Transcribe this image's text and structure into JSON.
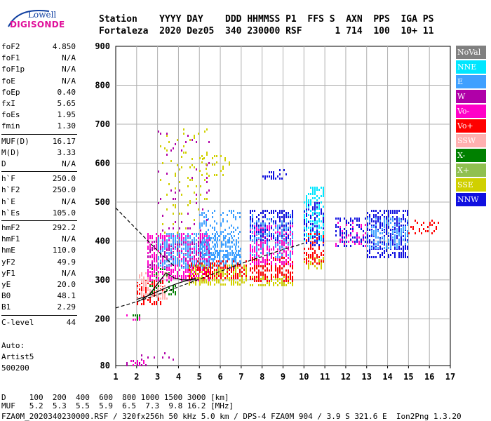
{
  "logo": {
    "brand": "Lowell",
    "product": "DIGISONDE"
  },
  "header": {
    "line1": "Station    YYYY DAY    DDD HHMMSS P1  FFS S  AXN  PPS  IGA PS",
    "line2": "Fortaleza  2020 Dez05  340 230000 RSF      1 714  100  10+ 11"
  },
  "params_group1": [
    {
      "label": "foF2",
      "value": "4.850"
    },
    {
      "label": "foF1",
      "value": "N/A"
    },
    {
      "label": "foF1p",
      "value": "N/A"
    },
    {
      "label": "foE",
      "value": "N/A"
    },
    {
      "label": "foEp",
      "value": "0.40"
    },
    {
      "label": "fxI",
      "value": "5.65"
    },
    {
      "label": "foEs",
      "value": "1.95"
    },
    {
      "label": "fmin",
      "value": "1.30"
    }
  ],
  "params_group2": [
    {
      "label": "MUF(D)",
      "value": "16.17"
    },
    {
      "label": "M(D)",
      "value": "3.33"
    },
    {
      "label": "D",
      "value": "N/A"
    }
  ],
  "params_group3": [
    {
      "label": "h`F",
      "value": "250.0"
    },
    {
      "label": "h`F2",
      "value": "250.0"
    },
    {
      "label": "h`E",
      "value": "N/A"
    },
    {
      "label": "h`Es",
      "value": "105.0"
    }
  ],
  "params_group4": [
    {
      "label": "hmF2",
      "value": "292.2"
    },
    {
      "label": "hmF1",
      "value": "N/A"
    },
    {
      "label": "hmE",
      "value": "110.0"
    },
    {
      "label": "yF2",
      "value": "49.9"
    },
    {
      "label": "yF1",
      "value": "N/A"
    },
    {
      "label": "yE",
      "value": "20.0"
    },
    {
      "label": "B0",
      "value": "48.1"
    },
    {
      "label": "B1",
      "value": "2.29"
    }
  ],
  "params_group5": [
    {
      "label": "C-level",
      "value": "44"
    }
  ],
  "autoscaling": {
    "line1": "Auto:",
    "line2": "Artist5",
    "line3": "500200"
  },
  "legend": [
    {
      "label": "NoVal",
      "color": "#808080"
    },
    {
      "label": "NNE",
      "color": "#00e6ff"
    },
    {
      "label": "E",
      "color": "#3fa0ff"
    },
    {
      "label": "W",
      "color": "#b000a8"
    },
    {
      "label": "Vo-",
      "color": "#ff00c8"
    },
    {
      "label": "Vo+",
      "color": "#ff0000"
    },
    {
      "label": "SSW",
      "color": "#ffb0b0"
    },
    {
      "label": "X-",
      "color": "#008000"
    },
    {
      "label": "X+",
      "color": "#90c050"
    },
    {
      "label": "SSE",
      "color": "#d0d000"
    },
    {
      "label": "NNW",
      "color": "#1010e0"
    }
  ],
  "footer": {
    "line1": "D     100  200  400  600  800 1000 1500 3000 [km]",
    "line2": "MUF   5.2  5.3  5.5  5.9  6.5  7.3  9.8 16.2 [MHz]",
    "line3": "FZA0M_2020340230000.RSF / 320fx256h 50 kHz 5.0 km / DPS-4 FZA0M 904 / 3.9 S 321.6 E  Ion2Png 1.3.20"
  },
  "chart_data": {
    "type": "scatter",
    "xlim": [
      1,
      17
    ],
    "ylim": [
      80,
      900
    ],
    "x_ticks": [
      1,
      2,
      3,
      4,
      5,
      6,
      7,
      8,
      9,
      10,
      11,
      12,
      13,
      14,
      15,
      16,
      17
    ],
    "y_ticks": [
      80,
      200,
      300,
      400,
      500,
      600,
      700,
      800,
      900
    ],
    "grid": true,
    "clusters": [
      {
        "x": [
          1.5,
          2.5
        ],
        "y": [
          80,
          95
        ],
        "color": "#ff00c8",
        "density": 0.4
      },
      {
        "x": [
          1.5,
          2.5
        ],
        "y": [
          80,
          95
        ],
        "color": "#b000a8",
        "density": 0.3
      },
      {
        "x": [
          2.2,
          3.8
        ],
        "y": [
          95,
          115
        ],
        "color": "#b000a8",
        "density": 0.15
      },
      {
        "x": [
          1.5,
          2.2
        ],
        "y": [
          200,
          212
        ],
        "color": "#ff00c8",
        "density": 0.4
      },
      {
        "x": [
          1.5,
          2.2
        ],
        "y": [
          200,
          212
        ],
        "color": "#008000",
        "density": 0.2
      },
      {
        "x": [
          2.0,
          3.3
        ],
        "y": [
          240,
          300
        ],
        "color": "#ff0000",
        "density": 0.5
      },
      {
        "x": [
          2.0,
          3.5
        ],
        "y": [
          250,
          320
        ],
        "color": "#ffb0b0",
        "density": 0.4
      },
      {
        "x": [
          2.6,
          4.0
        ],
        "y": [
          260,
          330
        ],
        "color": "#008000",
        "density": 0.25
      },
      {
        "x": [
          2.5,
          5.5
        ],
        "y": [
          300,
          420
        ],
        "color": "#ff00c8",
        "density": 0.5
      },
      {
        "x": [
          2.5,
          5.5
        ],
        "y": [
          330,
          400
        ],
        "color": "#b000a8",
        "density": 0.35
      },
      {
        "x": [
          3.0,
          7.0
        ],
        "y": [
          330,
          420
        ],
        "color": "#3fa0ff",
        "density": 0.5
      },
      {
        "x": [
          4.5,
          7.3
        ],
        "y": [
          290,
          340
        ],
        "color": "#d0d000",
        "density": 0.6
      },
      {
        "x": [
          4.5,
          7.3
        ],
        "y": [
          305,
          350
        ],
        "color": "#ff0000",
        "density": 0.45
      },
      {
        "x": [
          5.0,
          7.0
        ],
        "y": [
          350,
          480
        ],
        "color": "#3fa0ff",
        "density": 0.25
      },
      {
        "x": [
          3.0,
          5.5
        ],
        "y": [
          420,
          690
        ],
        "color": "#d0d000",
        "density": 0.05
      },
      {
        "x": [
          3.0,
          5.5
        ],
        "y": [
          420,
          690
        ],
        "color": "#b000a8",
        "density": 0.03
      },
      {
        "x": [
          5.0,
          6.5
        ],
        "y": [
          570,
          620
        ],
        "color": "#d0d000",
        "density": 0.15
      },
      {
        "x": [
          7.4,
          9.5
        ],
        "y": [
          285,
          310
        ],
        "color": "#d0d000",
        "density": 0.6
      },
      {
        "x": [
          7.4,
          9.5
        ],
        "y": [
          300,
          360
        ],
        "color": "#ff0000",
        "density": 0.5
      },
      {
        "x": [
          7.4,
          9.5
        ],
        "y": [
          340,
          440
        ],
        "color": "#ff00c8",
        "density": 0.45
      },
      {
        "x": [
          7.4,
          9.5
        ],
        "y": [
          400,
          480
        ],
        "color": "#1010e0",
        "density": 0.45
      },
      {
        "x": [
          7.4,
          9.5
        ],
        "y": [
          360,
          470
        ],
        "color": "#3fa0ff",
        "density": 0.3
      },
      {
        "x": [
          8.0,
          9.2
        ],
        "y": [
          560,
          585
        ],
        "color": "#1010e0",
        "density": 0.35
      },
      {
        "x": [
          10.0,
          11.0
        ],
        "y": [
          330,
          360
        ],
        "color": "#d0d000",
        "density": 0.5
      },
      {
        "x": [
          10.0,
          11.0
        ],
        "y": [
          340,
          420
        ],
        "color": "#ff0000",
        "density": 0.4
      },
      {
        "x": [
          10.0,
          11.0
        ],
        "y": [
          400,
          540
        ],
        "color": "#00e6ff",
        "density": 0.5
      },
      {
        "x": [
          10.0,
          11.0
        ],
        "y": [
          390,
          500
        ],
        "color": "#1010e0",
        "density": 0.3
      },
      {
        "x": [
          11.5,
          13.0
        ],
        "y": [
          385,
          460
        ],
        "color": "#1010e0",
        "density": 0.3
      },
      {
        "x": [
          11.5,
          13.0
        ],
        "y": [
          390,
          450
        ],
        "color": "#ff00c8",
        "density": 0.2
      },
      {
        "x": [
          13.0,
          15.0
        ],
        "y": [
          360,
          480
        ],
        "color": "#1010e0",
        "density": 0.55
      },
      {
        "x": [
          13.0,
          15.0
        ],
        "y": [
          380,
          460
        ],
        "color": "#3fa0ff",
        "density": 0.4
      },
      {
        "x": [
          15.0,
          16.5
        ],
        "y": [
          420,
          455
        ],
        "color": "#ff0000",
        "density": 0.15
      }
    ],
    "profile_curves": [
      {
        "name": "dashed",
        "x": [
          1.0,
          2.0,
          3.0,
          4.0,
          5.0,
          6.0,
          7.0,
          8.0,
          9.0,
          10.0
        ],
        "y": [
          228,
          244,
          262,
          282,
          302,
          322,
          342,
          360,
          378,
          394
        ],
        "style": "dashed"
      },
      {
        "name": "dashed-upper",
        "x": [
          1.0,
          2.0,
          3.0,
          3.8
        ],
        "y": [
          485,
          430,
          375,
          335
        ],
        "style": "dashed"
      },
      {
        "name": "solid",
        "x": [
          2.0,
          2.5,
          3.0,
          3.5,
          4.0,
          4.5,
          4.85
        ],
        "y": [
          250,
          258,
          270,
          282,
          292,
          300,
          305
        ],
        "style": "solid"
      },
      {
        "name": "solid-rise",
        "x": [
          2.2,
          2.6,
          3.0,
          3.4,
          3.8,
          4.2,
          4.85
        ],
        "y": [
          248,
          262,
          290,
          318,
          305,
          300,
          300
        ],
        "style": "solid"
      }
    ]
  }
}
